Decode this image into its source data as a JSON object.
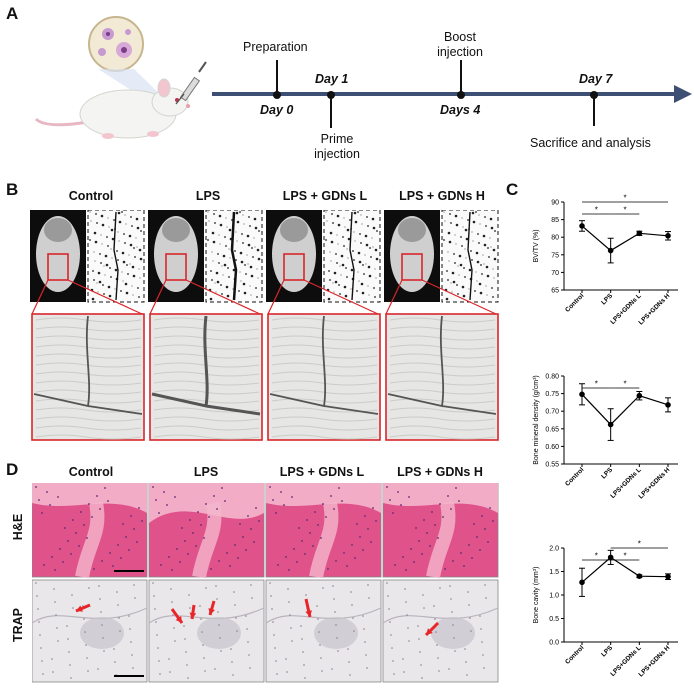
{
  "panels": {
    "a": "A",
    "b": "B",
    "c": "C",
    "d": "D"
  },
  "timeline": {
    "preparation": "Preparation",
    "day0": "Day 0",
    "day1": "Day 1",
    "prime_line1": "Prime",
    "prime_line2": "injection",
    "boost_line1": "Boost",
    "boost_line2": "injection",
    "days4": "Days 4",
    "day7": "Day 7",
    "sacrifice": "Sacrifice and analysis"
  },
  "groups": [
    "Control",
    "LPS",
    "LPS + GDNs L",
    "LPS + GDNs H"
  ],
  "rows": {
    "he": "H&E",
    "trap": "TRAP"
  },
  "colors": {
    "timeline": "#3d4f73",
    "he_pink": "#e0528a",
    "he_light": "#f4b6cc",
    "trap_bg": "#e9e7ea",
    "red": "#e8262a",
    "zoom_box": "#d9262b"
  },
  "icons": [
    "mouse-icon",
    "cell-dish-icon",
    "syringe-icon",
    "arrow-icon"
  ],
  "chart_data": [
    {
      "type": "line",
      "ylabel": "BV/TV (%)",
      "categories": [
        "Control",
        "LPS",
        "LPS+GDNs L",
        "LPS+GDNs H"
      ],
      "values": [
        83.2,
        76.2,
        81.1,
        80.4
      ],
      "errors": [
        1.5,
        3.5,
        0.6,
        1.2
      ],
      "ylim": [
        65,
        90
      ],
      "yticks": [
        "65",
        "70",
        "75",
        "80",
        "85",
        "90"
      ],
      "significance": [
        {
          "pair": [
            "Control",
            "LPS"
          ],
          "label": "*"
        },
        {
          "pair": [
            "LPS",
            "LPS+GDNs L"
          ],
          "label": "*"
        },
        {
          "pair": [
            "Control",
            "LPS+GDNs H"
          ],
          "label": "*"
        }
      ]
    },
    {
      "type": "line",
      "ylabel": "Bone mineral density (g/cm³)",
      "categories": [
        "Control",
        "LPS",
        "LPS+GDNs L",
        "LPS+GDNs H"
      ],
      "values": [
        0.748,
        0.662,
        0.744,
        0.718
      ],
      "errors": [
        0.03,
        0.045,
        0.012,
        0.02
      ],
      "ylim": [
        0.55,
        0.8
      ],
      "yticks": [
        "0.55",
        "0.60",
        "0.65",
        "0.70",
        "0.75",
        "0.80"
      ],
      "significance": [
        {
          "pair": [
            "Control",
            "LPS"
          ],
          "label": "*"
        },
        {
          "pair": [
            "LPS",
            "LPS+GDNs L"
          ],
          "label": "*"
        }
      ]
    },
    {
      "type": "line",
      "ylabel": "Bone cavity (mm³)",
      "categories": [
        "Control",
        "LPS",
        "LPS+GDNs L",
        "LPS+GDNs H"
      ],
      "values": [
        1.27,
        1.8,
        1.4,
        1.39
      ],
      "errors": [
        0.3,
        0.15,
        0.03,
        0.06
      ],
      "ylim": [
        0.0,
        2.0
      ],
      "yticks": [
        "0.0",
        "0.5",
        "1.0",
        "1.5",
        "2.0"
      ],
      "significance": [
        {
          "pair": [
            "Control",
            "LPS"
          ],
          "label": "*"
        },
        {
          "pair": [
            "LPS",
            "LPS+GDNs L"
          ],
          "label": "*"
        },
        {
          "pair": [
            "LPS",
            "LPS+GDNs H"
          ],
          "label": "*"
        }
      ]
    }
  ]
}
